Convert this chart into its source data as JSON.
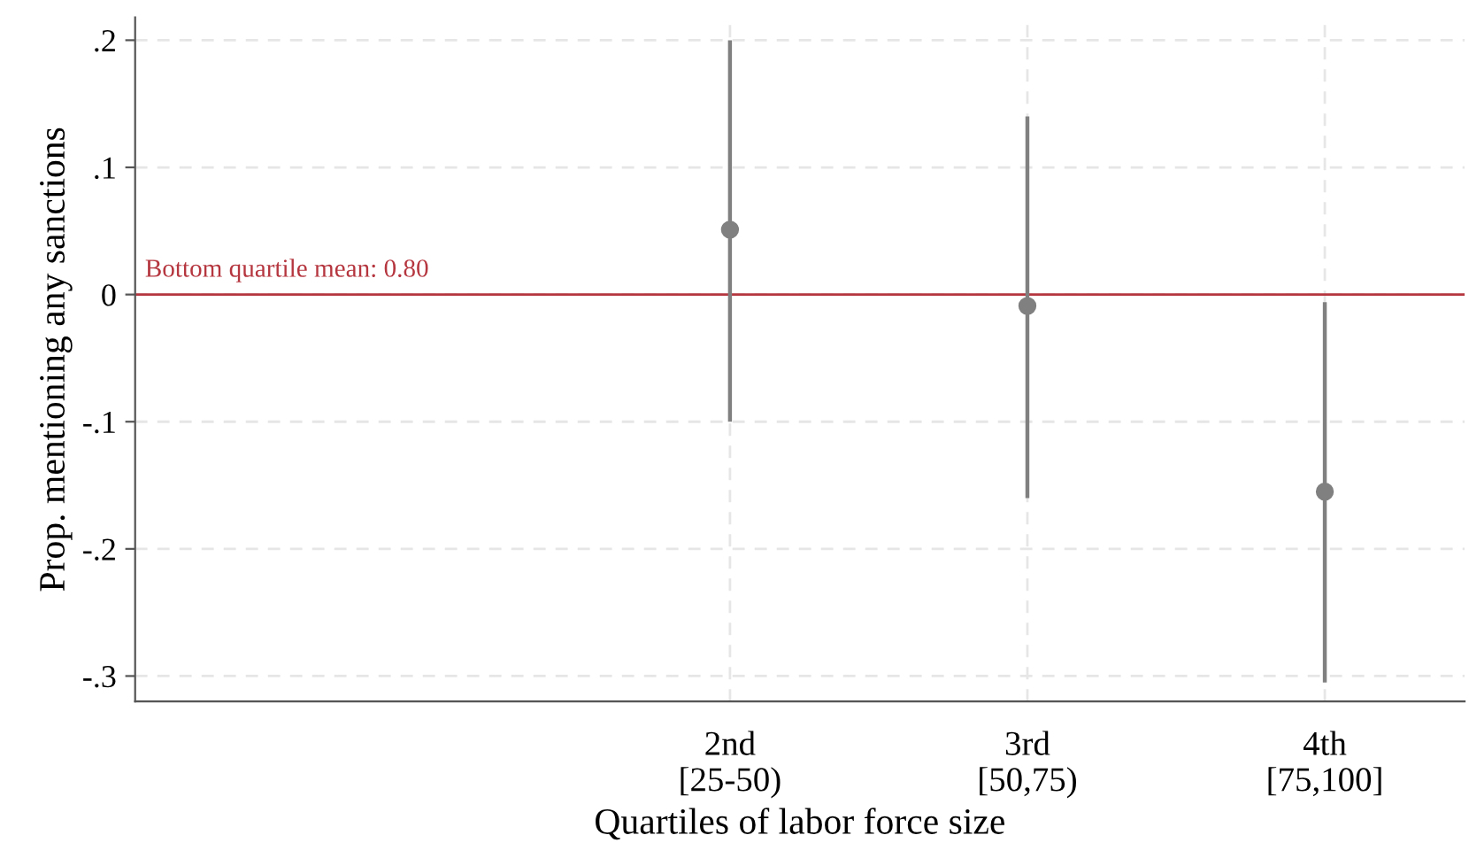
{
  "chart_data": {
    "type": "scatter",
    "xlabel": "Quartiles of labor force size",
    "ylabel": "Prop. mentioning any sanctions",
    "categories": [
      null,
      "2nd\n[25-50)",
      "3rd\n[50,75)",
      "4th\n[75,100]"
    ],
    "series": [
      {
        "color": "#808080",
        "values": [
          null,
          0.051,
          -0.009,
          -0.155
        ],
        "errors": [
          null,
          [
            -0.1,
            0.2
          ],
          [
            -0.16,
            0.14
          ],
          [
            -0.305,
            -0.006
          ]
        ]
      }
    ],
    "ylim": [
      -0.32,
      0.218
    ],
    "yticks": [
      {
        "value": 0.2,
        "label": ".2"
      },
      {
        "value": 0.1,
        "label": ".1"
      },
      0,
      {
        "value": -0.1,
        "label": "-.1"
      },
      {
        "value": -0.2,
        "label": "-.2"
      },
      {
        "value": -0.3,
        "label": "-.3"
      }
    ],
    "ref_lines": [
      {
        "axis": "y",
        "value": 0,
        "color": "#b5363f"
      }
    ],
    "annotations": [
      "Bottom quartile mean: 0.80"
    ],
    "grid": true,
    "marker": "circle"
  }
}
